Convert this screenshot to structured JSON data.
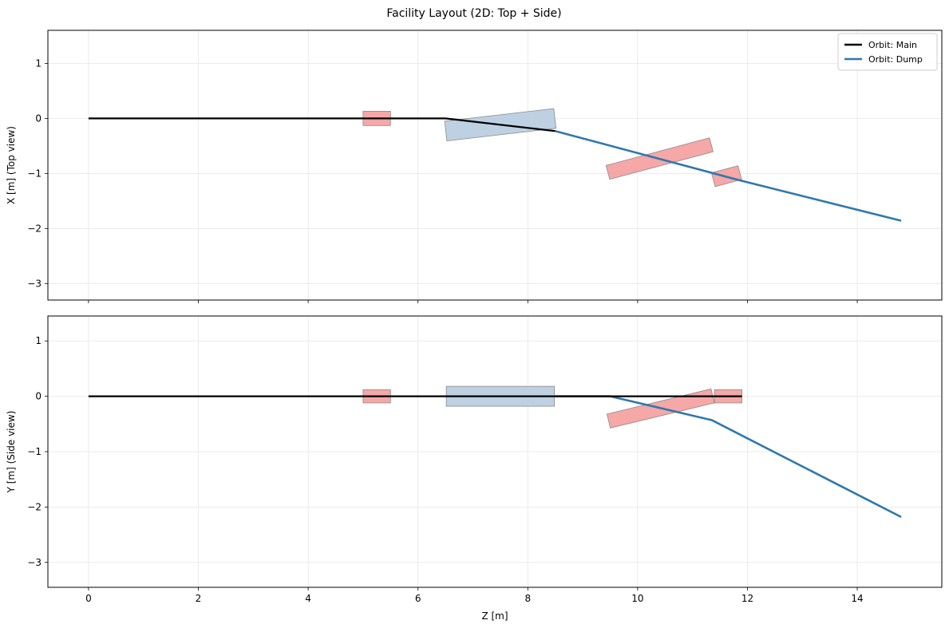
{
  "title": "Facility Layout (2D: Top + Side)",
  "colors": {
    "main": "#000000",
    "dump": "#2f78ad",
    "dipole": "#b9cfe2",
    "magnet": "#f5a2a2",
    "grid": "#e6e6e6"
  },
  "legend": {
    "main": "Orbit: Main",
    "dump": "Orbit: Dump"
  },
  "chart_data": [
    {
      "type": "line",
      "ylabel": "X [m] (Top view)",
      "xlim": [
        -0.74,
        15.54
      ],
      "ylim": [
        -3.3,
        1.6
      ],
      "xticks": [
        0,
        2,
        4,
        6,
        8,
        10,
        12,
        14
      ],
      "yticks": [
        1,
        0,
        -1,
        -2,
        -3
      ],
      "ytick_labels": [
        "1",
        "0",
        "−1",
        "−2",
        "−3"
      ],
      "show_xtick_labels": false,
      "grid": true,
      "legend_position": "top-right",
      "series": [
        {
          "name": "Orbit: Main",
          "color": "main",
          "points": [
            [
              0,
              0
            ],
            [
              6.5,
              0
            ],
            [
              8.5,
              -0.23
            ]
          ]
        },
        {
          "name": "Orbit: Dump",
          "color": "dump",
          "points": [
            [
              8.5,
              -0.23
            ],
            [
              11.84,
              -1.12
            ],
            [
              14.8,
              -1.86
            ]
          ]
        }
      ],
      "elements": [
        {
          "kind": "magnet",
          "center": [
            5.25,
            0
          ],
          "length": 0.5,
          "width": 0.26,
          "angle": 0
        },
        {
          "kind": "dipole",
          "center": [
            7.5,
            -0.115
          ],
          "length": 2.0,
          "width": 0.36,
          "angle": -0.115
        },
        {
          "kind": "magnet",
          "center": [
            10.4,
            -0.73
          ],
          "length": 1.95,
          "width": 0.26,
          "angle": -0.26
        },
        {
          "kind": "magnet",
          "center": [
            11.62,
            -1.05
          ],
          "length": 0.5,
          "width": 0.26,
          "angle": -0.26
        }
      ]
    },
    {
      "type": "line",
      "ylabel": "Y [m] (Side view)",
      "xlabel": "Z [m]",
      "xlim": [
        -0.74,
        15.54
      ],
      "ylim": [
        -3.45,
        1.45
      ],
      "xticks": [
        0,
        2,
        4,
        6,
        8,
        10,
        12,
        14
      ],
      "yticks": [
        1,
        0,
        -1,
        -2,
        -3
      ],
      "ytick_labels": [
        "1",
        "0",
        "−1",
        "−2",
        "−3"
      ],
      "show_xtick_labels": true,
      "grid": true,
      "series": [
        {
          "name": "Orbit: Dump",
          "color": "dump",
          "points": [
            [
              8.5,
              0
            ],
            [
              9.5,
              0
            ],
            [
              11.35,
              -0.43
            ],
            [
              14.8,
              -2.18
            ]
          ]
        },
        {
          "name": "Orbit: Main",
          "color": "main",
          "points": [
            [
              0,
              0
            ],
            [
              11.9,
              0
            ]
          ]
        }
      ],
      "elements": [
        {
          "kind": "magnet",
          "center": [
            5.25,
            0
          ],
          "length": 0.5,
          "width": 0.24,
          "angle": 0
        },
        {
          "kind": "dipole",
          "center": [
            7.5,
            0
          ],
          "length": 1.97,
          "width": 0.36,
          "angle": 0
        },
        {
          "kind": "magnet",
          "center": [
            10.42,
            -0.22
          ],
          "length": 1.95,
          "width": 0.26,
          "angle": -0.235
        },
        {
          "kind": "magnet",
          "center": [
            11.65,
            0
          ],
          "length": 0.5,
          "width": 0.24,
          "angle": 0
        }
      ]
    }
  ]
}
